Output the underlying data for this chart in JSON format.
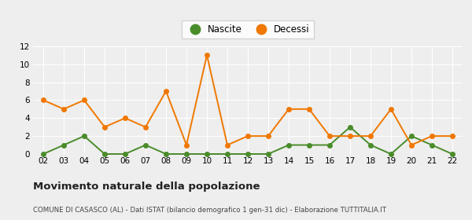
{
  "years": [
    "02",
    "03",
    "04",
    "05",
    "06",
    "07",
    "08",
    "09",
    "10",
    "11",
    "12",
    "13",
    "14",
    "15",
    "16",
    "17",
    "18",
    "19",
    "20",
    "21",
    "22"
  ],
  "nascite": [
    0,
    1,
    2,
    0,
    0,
    1,
    0,
    0,
    0,
    0,
    0,
    0,
    1,
    1,
    1,
    3,
    1,
    0,
    2,
    1,
    0
  ],
  "decessi": [
    6,
    5,
    6,
    3,
    4,
    3,
    7,
    1,
    11,
    1,
    2,
    2,
    5,
    5,
    2,
    2,
    2,
    5,
    1,
    2,
    2
  ],
  "nascite_color": "#4a8c2a",
  "decessi_color": "#f07800",
  "title": "Movimento naturale della popolazione",
  "subtitle": "COMUNE DI CASASCO (AL) - Dati ISTAT (bilancio demografico 1 gen-31 dic) - Elaborazione TUTTITALIA.IT",
  "legend_nascite": "Nascite",
  "legend_decessi": "Decessi",
  "ylim": [
    0,
    12
  ],
  "yticks": [
    0,
    2,
    4,
    6,
    8,
    10,
    12
  ],
  "bg_color": "#eeeeee",
  "grid_color": "#ffffff",
  "marker_size": 4,
  "line_width": 1.4,
  "tick_fontsize": 7.5,
  "title_fontsize": 9.5,
  "subtitle_fontsize": 6.2
}
